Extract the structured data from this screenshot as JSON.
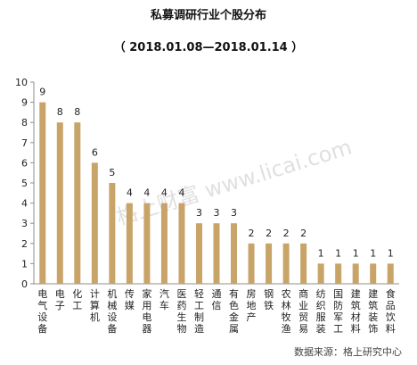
{
  "chart_data": {
    "type": "bar",
    "title": "私募调研行业个股分布",
    "subtitle": "（ 2018.01.08—2018.01.14 ）",
    "categories": [
      "电气设备",
      "电子",
      "化工",
      "计算机",
      "机械设备",
      "传媒",
      "家用电器",
      "汽车",
      "医药生物",
      "轻工制造",
      "通信",
      "有色金属",
      "房地产",
      "钢铁",
      "农林牧渔",
      "商业贸易",
      "纺织服装",
      "国防军工",
      "建筑材料",
      "建筑装饰",
      "食品饮料"
    ],
    "values": [
      9,
      8,
      8,
      6,
      5,
      4,
      4,
      4,
      4,
      3,
      3,
      3,
      2,
      2,
      2,
      2,
      1,
      1,
      1,
      1,
      1
    ],
    "ylim": [
      0,
      10
    ],
    "yticks": [
      0,
      1,
      2,
      3,
      4,
      5,
      6,
      7,
      8,
      9,
      10
    ],
    "grid": false,
    "bar_color": "#c9a468",
    "source": "数据来源：格上研究中心",
    "watermark": "格上财富 www.licai.com"
  }
}
